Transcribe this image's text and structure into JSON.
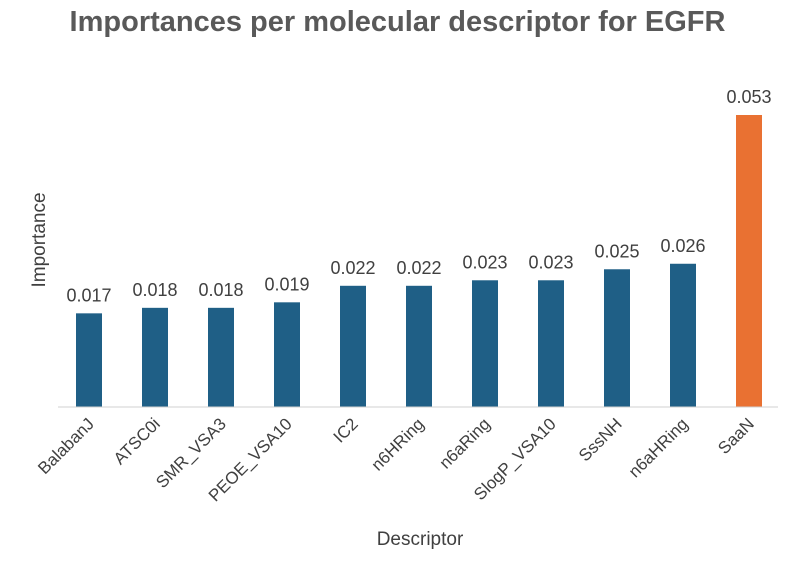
{
  "chart_data": {
    "type": "bar",
    "title": "Importances per molecular descriptor for EGFR",
    "xlabel": "Descriptor",
    "ylabel": "Importance",
    "categories": [
      "BalabanJ",
      "ATSC0i",
      "SMR_VSA3",
      "PEOE_VSA10",
      "IC2",
      "n6HRing",
      "n6aRing",
      "SlogP_VSA10",
      "SssNH",
      "n6aHRing",
      "SaaN"
    ],
    "values": [
      0.017,
      0.018,
      0.018,
      0.019,
      0.022,
      0.022,
      0.023,
      0.023,
      0.025,
      0.026,
      0.053
    ],
    "data_labels": [
      "0.017",
      "0.018",
      "0.018",
      "0.019",
      "0.022",
      "0.022",
      "0.023",
      "0.023",
      "0.025",
      "0.026",
      "0.053"
    ],
    "bar_colors": [
      "#1f5f86",
      "#1f5f86",
      "#1f5f86",
      "#1f5f86",
      "#1f5f86",
      "#1f5f86",
      "#1f5f86",
      "#1f5f86",
      "#1f5f86",
      "#1f5f86",
      "#e97132"
    ],
    "ylim": [
      0,
      0.055
    ],
    "grid": false,
    "legend": "none"
  }
}
